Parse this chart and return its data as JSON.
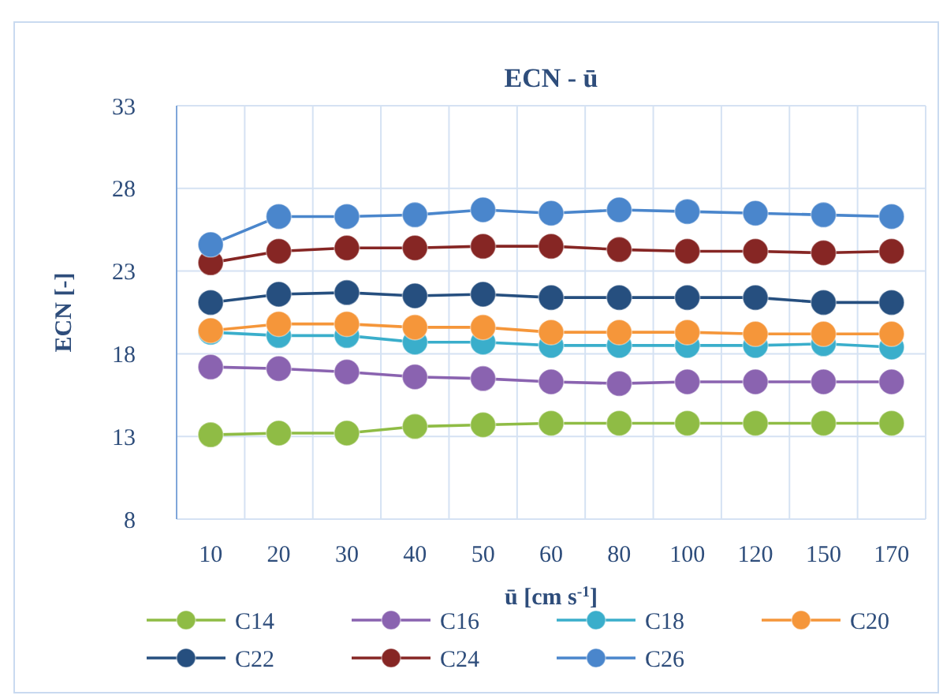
{
  "chart_data": {
    "type": "line",
    "title": "ECN - ū",
    "xlabel": "ū [cm s$^{-1}$]",
    "ylabel": "ECN [-]",
    "categories": [
      "10",
      "20",
      "30",
      "40",
      "50",
      "60",
      "80",
      "100",
      "120",
      "150",
      "170"
    ],
    "ylim": [
      8,
      33
    ],
    "yticks": [
      8,
      13,
      18,
      23,
      28,
      33
    ],
    "grid": true,
    "legend": "bottom",
    "marker": "circle",
    "series": [
      {
        "name": "C14",
        "color": "#8fbc45",
        "values": [
          13.1,
          13.2,
          13.2,
          13.6,
          13.7,
          13.8,
          13.8,
          13.8,
          13.8,
          13.8,
          13.8
        ]
      },
      {
        "name": "C16",
        "color": "#8a63b0",
        "values": [
          17.2,
          17.1,
          16.9,
          16.6,
          16.5,
          16.3,
          16.2,
          16.3,
          16.3,
          16.3,
          16.3
        ]
      },
      {
        "name": "C18",
        "color": "#3aaecb",
        "values": [
          19.3,
          19.1,
          19.1,
          18.7,
          18.7,
          18.5,
          18.5,
          18.5,
          18.5,
          18.6,
          18.4
        ]
      },
      {
        "name": "C20",
        "color": "#f5963a",
        "values": [
          19.4,
          19.8,
          19.8,
          19.6,
          19.6,
          19.3,
          19.3,
          19.3,
          19.2,
          19.2,
          19.2
        ]
      },
      {
        "name": "C22",
        "color": "#264f7f",
        "values": [
          21.1,
          21.6,
          21.7,
          21.5,
          21.6,
          21.4,
          21.4,
          21.4,
          21.4,
          21.1,
          21.1
        ]
      },
      {
        "name": "C24",
        "color": "#862624",
        "values": [
          23.5,
          24.2,
          24.4,
          24.4,
          24.5,
          24.5,
          24.3,
          24.2,
          24.2,
          24.1,
          24.2
        ]
      },
      {
        "name": "C26",
        "color": "#4a86cc",
        "values": [
          24.6,
          26.3,
          26.3,
          26.4,
          26.7,
          26.5,
          26.7,
          26.6,
          26.5,
          26.4,
          26.3
        ]
      }
    ]
  }
}
